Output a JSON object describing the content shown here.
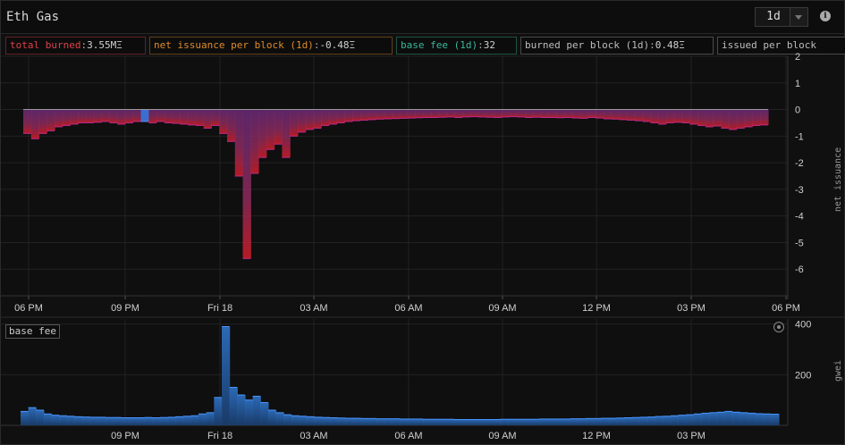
{
  "header": {
    "title": "Eth Gas",
    "timeframe": "1d",
    "info_icon": "info-icon",
    "dropdown_icon": "chevron-down-icon"
  },
  "legend": [
    {
      "label": "total burned",
      "value": "3.55MΞ",
      "color": "#e0404a"
    },
    {
      "label": "net issuance per block (1d)",
      "value": "-0.48Ξ",
      "color": "#e08a2a"
    },
    {
      "label": "base fee (1d)",
      "value": "32",
      "color": "#39b89a"
    },
    {
      "label": "burned per block (1d)",
      "value": "0.48Ξ",
      "color": "#bdbdbd"
    },
    {
      "label": "issued per block",
      "value": "",
      "color": "#bdbdbd"
    }
  ],
  "lower": {
    "badge": "base fee",
    "settings_icon": "settings-icon"
  },
  "chart_data": [
    {
      "type": "area",
      "ylabel": "net issuance",
      "ylim": [
        -7,
        2
      ],
      "yticks": [
        2,
        1,
        0,
        -1,
        -2,
        -3,
        -4,
        -5,
        -6
      ],
      "xticks": [
        "06 PM",
        "09 PM",
        "Fri 18",
        "03 AM",
        "06 AM",
        "09 AM",
        "12 PM",
        "03 PM",
        "06 PM"
      ],
      "x_start": "17 5:00 PM",
      "x_end": "18 6:00 PM",
      "series": [
        {
          "values": [
            -0.9,
            -1.1,
            -0.9,
            -0.8,
            -0.65,
            -0.6,
            -0.55,
            -0.5,
            -0.5,
            -0.48,
            -0.45,
            -0.5,
            -0.55,
            -0.5,
            -0.45,
            -0.45,
            -0.5,
            -0.45,
            -0.5,
            -0.52,
            -0.55,
            -0.58,
            -0.6,
            -0.7,
            -0.6,
            -0.9,
            -1.2,
            -2.5,
            -5.6,
            -2.4,
            -1.8,
            -1.5,
            -1.3,
            -1.8,
            -1.0,
            -0.85,
            -0.75,
            -0.7,
            -0.6,
            -0.55,
            -0.5,
            -0.45,
            -0.42,
            -0.4,
            -0.38,
            -0.36,
            -0.35,
            -0.34,
            -0.33,
            -0.32,
            -0.31,
            -0.3,
            -0.3,
            -0.29,
            -0.28,
            -0.3,
            -0.28,
            -0.27,
            -0.28,
            -0.29,
            -0.3,
            -0.28,
            -0.27,
            -0.28,
            -0.3,
            -0.29,
            -0.3,
            -0.3,
            -0.31,
            -0.3,
            -0.32,
            -0.33,
            -0.3,
            -0.32,
            -0.35,
            -0.36,
            -0.38,
            -0.4,
            -0.42,
            -0.45,
            -0.5,
            -0.55,
            -0.5,
            -0.48,
            -0.5,
            -0.55,
            -0.6,
            -0.65,
            -0.62,
            -0.7,
            -0.75,
            -0.7,
            -0.65,
            -0.6,
            -0.58
          ],
          "highlight_index": 15
        }
      ]
    },
    {
      "type": "area",
      "ylabel": "gwei",
      "ylim": [
        0,
        420
      ],
      "yticks": [
        400,
        200
      ],
      "xticks": [
        "09 PM",
        "Fri 18",
        "03 AM",
        "06 AM",
        "09 AM",
        "12 PM",
        "03 PM"
      ],
      "series": [
        {
          "values": [
            55,
            70,
            60,
            45,
            40,
            38,
            36,
            34,
            33,
            32,
            32,
            31,
            31,
            30,
            30,
            30,
            31,
            30,
            31,
            32,
            34,
            36,
            38,
            45,
            50,
            110,
            390,
            150,
            120,
            100,
            115,
            90,
            60,
            50,
            42,
            38,
            36,
            34,
            32,
            31,
            30,
            29,
            28,
            28,
            27,
            27,
            26,
            26,
            26,
            25,
            25,
            25,
            24,
            24,
            24,
            24,
            23,
            23,
            23,
            23,
            23,
            23,
            24,
            24,
            24,
            24,
            24,
            25,
            25,
            25,
            25,
            26,
            26,
            27,
            27,
            28,
            28,
            29,
            30,
            31,
            32,
            33,
            35,
            36,
            38,
            40,
            42,
            45,
            48,
            50,
            52,
            55,
            52,
            50,
            48,
            46,
            45,
            44
          ]
        }
      ]
    }
  ]
}
